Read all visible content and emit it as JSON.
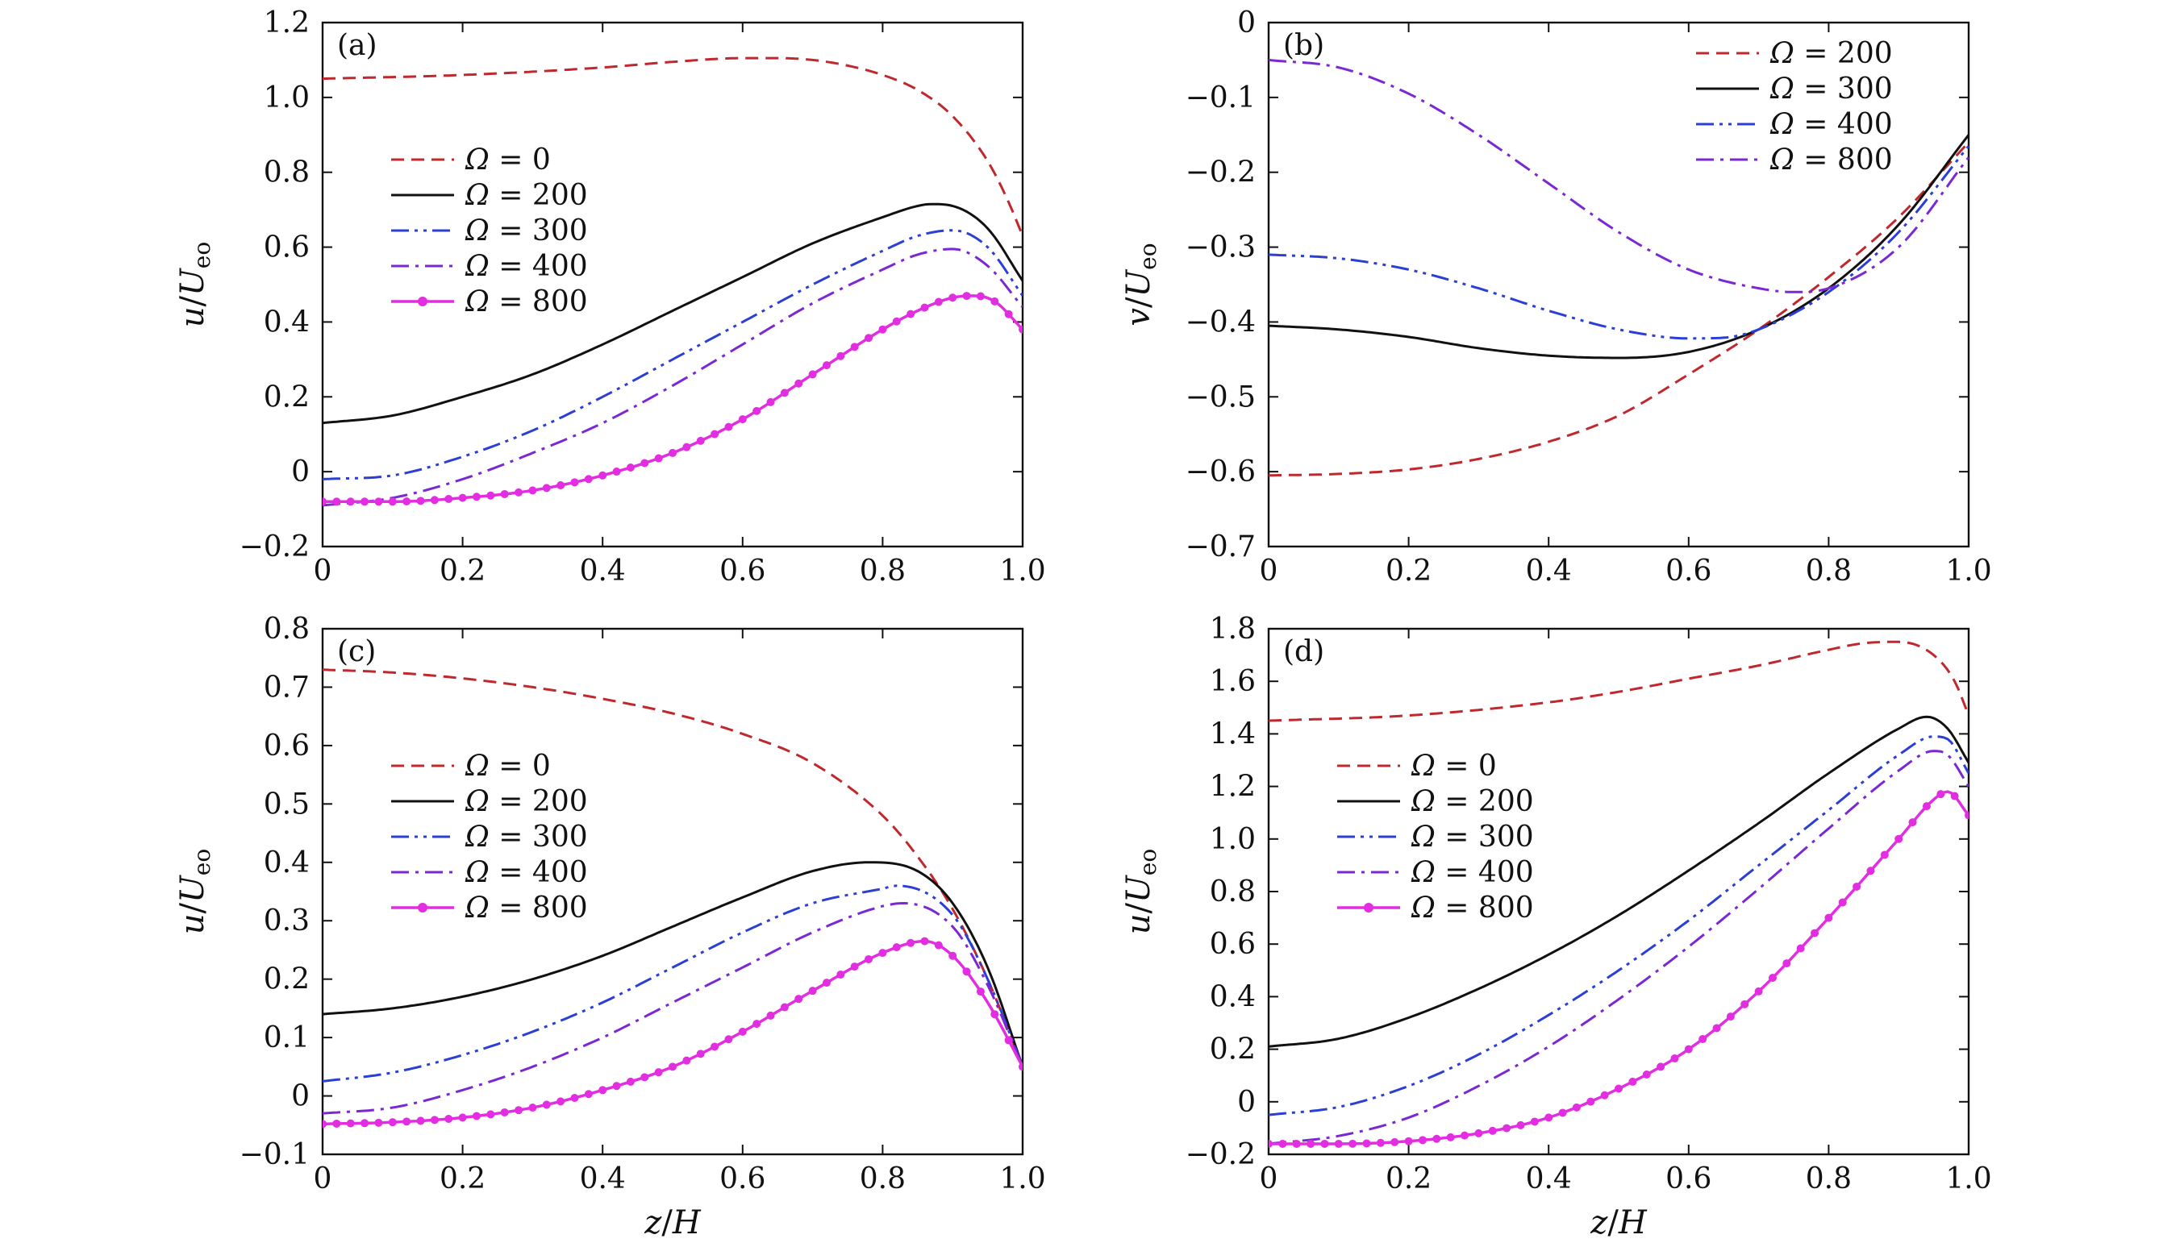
{
  "figure": {
    "shared_xlabel": {
      "var": "z",
      "sep": "/",
      "denom": "H"
    }
  },
  "chart_data": [
    {
      "type": "line",
      "panel": "(a)",
      "ylabel": {
        "var": "u",
        "sep": "/",
        "denom": "U",
        "sub": "eo"
      },
      "xlim": [
        0,
        1.0
      ],
      "ylim": [
        -0.2,
        1.2
      ],
      "xticks": [
        0,
        0.2,
        0.4,
        0.6,
        0.8,
        1.0
      ],
      "xtick_labels": [
        "0",
        "0.2",
        "0.4",
        "0.6",
        "0.8",
        "1.0"
      ],
      "yticks": [
        -0.2,
        0,
        0.2,
        0.4,
        0.6,
        0.8,
        1.0,
        1.2
      ],
      "ytick_labels": [
        "−0.2",
        "0",
        "0.2",
        "0.4",
        "0.6",
        "0.8",
        "1.0",
        "1.2"
      ],
      "legend_position": "center-left",
      "series": [
        {
          "name": "Ω = 0",
          "sym": "Ω",
          "eq": " = ",
          "val": "0",
          "color": "#c0282d",
          "style": "dashed",
          "markers": false,
          "x": [
            0,
            0.2,
            0.4,
            0.5,
            0.6,
            0.65,
            0.7,
            0.75,
            0.8,
            0.85,
            0.9,
            0.95,
            0.98,
            1.0
          ],
          "y": [
            1.05,
            1.06,
            1.08,
            1.095,
            1.105,
            1.105,
            1.1,
            1.085,
            1.06,
            1.02,
            0.95,
            0.83,
            0.72,
            0.63
          ]
        },
        {
          "name": "Ω = 200",
          "sym": "Ω",
          "eq": " = ",
          "val": "200",
          "color": "#111111",
          "style": "solid",
          "markers": false,
          "x": [
            0,
            0.1,
            0.2,
            0.3,
            0.4,
            0.5,
            0.6,
            0.7,
            0.8,
            0.85,
            0.87,
            0.9,
            0.95,
            1.0
          ],
          "y": [
            0.13,
            0.15,
            0.2,
            0.26,
            0.34,
            0.43,
            0.52,
            0.61,
            0.68,
            0.71,
            0.715,
            0.71,
            0.65,
            0.51
          ]
        },
        {
          "name": "Ω = 300",
          "sym": "Ω",
          "eq": " = ",
          "val": "300",
          "color": "#2b3fd6",
          "style": "dashdotdot",
          "markers": false,
          "x": [
            0,
            0.1,
            0.2,
            0.3,
            0.4,
            0.5,
            0.6,
            0.7,
            0.8,
            0.85,
            0.9,
            0.95,
            1.0
          ],
          "y": [
            -0.02,
            -0.01,
            0.04,
            0.11,
            0.2,
            0.3,
            0.4,
            0.5,
            0.59,
            0.63,
            0.645,
            0.6,
            0.47
          ]
        },
        {
          "name": "Ω = 400",
          "sym": "Ω",
          "eq": " = ",
          "val": "400",
          "color": "#7a28d4",
          "style": "dashdot",
          "markers": false,
          "x": [
            0,
            0.1,
            0.2,
            0.3,
            0.4,
            0.5,
            0.6,
            0.7,
            0.8,
            0.85,
            0.9,
            0.95,
            1.0
          ],
          "y": [
            -0.09,
            -0.07,
            -0.02,
            0.05,
            0.13,
            0.23,
            0.34,
            0.45,
            0.54,
            0.58,
            0.595,
            0.55,
            0.44
          ]
        },
        {
          "name": "Ω = 800",
          "sym": "Ω",
          "eq": " = ",
          "val": "800",
          "color": "#e22de0",
          "style": "solid",
          "markers": true,
          "x": [
            0,
            0.1,
            0.2,
            0.3,
            0.4,
            0.5,
            0.6,
            0.7,
            0.8,
            0.85,
            0.9,
            0.93,
            0.96,
            1.0
          ],
          "y": [
            -0.08,
            -0.08,
            -0.07,
            -0.05,
            -0.01,
            0.05,
            0.14,
            0.26,
            0.38,
            0.43,
            0.465,
            0.47,
            0.455,
            0.38
          ]
        }
      ]
    },
    {
      "type": "line",
      "panel": "(b)",
      "ylabel": {
        "var": "v",
        "sep": "/",
        "denom": "U",
        "sub": "eo"
      },
      "xlim": [
        0,
        1.0
      ],
      "ylim": [
        -0.7,
        0
      ],
      "xticks": [
        0,
        0.2,
        0.4,
        0.6,
        0.8,
        1.0
      ],
      "xtick_labels": [
        "0",
        "0.2",
        "0.4",
        "0.6",
        "0.8",
        "1.0"
      ],
      "yticks": [
        -0.7,
        -0.6,
        -0.5,
        -0.4,
        -0.3,
        -0.2,
        -0.1,
        0
      ],
      "ytick_labels": [
        "−0.7",
        "−0.6",
        "−0.5",
        "−0.4",
        "−0.3",
        "−0.2",
        "−0.1",
        "0"
      ],
      "legend_position": "top-right",
      "series": [
        {
          "name": "Ω = 200",
          "sym": "Ω",
          "eq": " = ",
          "val": "200",
          "color": "#c0282d",
          "style": "dashed",
          "markers": false,
          "x": [
            0,
            0.1,
            0.2,
            0.3,
            0.4,
            0.5,
            0.6,
            0.7,
            0.8,
            0.9,
            1.0
          ],
          "y": [
            -0.605,
            -0.603,
            -0.597,
            -0.583,
            -0.56,
            -0.525,
            -0.47,
            -0.41,
            -0.34,
            -0.26,
            -0.16
          ]
        },
        {
          "name": "Ω = 300",
          "sym": "Ω",
          "eq": " = ",
          "val": "300",
          "color": "#111111",
          "style": "solid",
          "markers": false,
          "x": [
            0,
            0.1,
            0.2,
            0.3,
            0.4,
            0.5,
            0.6,
            0.7,
            0.8,
            0.9,
            1.0
          ],
          "y": [
            -0.405,
            -0.41,
            -0.42,
            -0.435,
            -0.445,
            -0.448,
            -0.44,
            -0.41,
            -0.355,
            -0.27,
            -0.15
          ]
        },
        {
          "name": "Ω = 400",
          "sym": "Ω",
          "eq": " = ",
          "val": "400",
          "color": "#2b3fd6",
          "style": "dashdotdot",
          "markers": false,
          "x": [
            0,
            0.1,
            0.2,
            0.3,
            0.4,
            0.5,
            0.6,
            0.65,
            0.7,
            0.8,
            0.9,
            1.0
          ],
          "y": [
            -0.31,
            -0.315,
            -0.33,
            -0.355,
            -0.385,
            -0.41,
            -0.422,
            -0.421,
            -0.41,
            -0.36,
            -0.28,
            -0.165
          ]
        },
        {
          "name": "Ω = 800",
          "sym": "Ω",
          "eq": " = ",
          "val": "800",
          "color": "#7a28d4",
          "style": "dashdot",
          "markers": false,
          "x": [
            0,
            0.1,
            0.2,
            0.3,
            0.4,
            0.5,
            0.6,
            0.7,
            0.75,
            0.8,
            0.9,
            1.0
          ],
          "y": [
            -0.05,
            -0.06,
            -0.095,
            -0.15,
            -0.215,
            -0.28,
            -0.33,
            -0.355,
            -0.36,
            -0.355,
            -0.3,
            -0.18
          ]
        }
      ]
    },
    {
      "type": "line",
      "panel": "(c)",
      "ylabel": {
        "var": "u",
        "sep": "/",
        "denom": "U",
        "sub": "eo"
      },
      "xlim": [
        0,
        1.0
      ],
      "ylim": [
        -0.1,
        0.8
      ],
      "xticks": [
        0,
        0.2,
        0.4,
        0.6,
        0.8,
        1.0
      ],
      "xtick_labels": [
        "0",
        "0.2",
        "0.4",
        "0.6",
        "0.8",
        "1.0"
      ],
      "yticks": [
        -0.1,
        0,
        0.1,
        0.2,
        0.3,
        0.4,
        0.5,
        0.6,
        0.7,
        0.8
      ],
      "ytick_labels": [
        "−0.1",
        "0",
        "0.1",
        "0.2",
        "0.3",
        "0.4",
        "0.5",
        "0.6",
        "0.7",
        "0.8"
      ],
      "legend_position": "center-left",
      "series": [
        {
          "name": "Ω = 0",
          "sym": "Ω",
          "eq": " = ",
          "val": "0",
          "color": "#c0282d",
          "style": "dashed",
          "markers": false,
          "x": [
            0,
            0.1,
            0.2,
            0.3,
            0.4,
            0.5,
            0.6,
            0.7,
            0.8,
            0.85,
            0.9,
            0.95,
            1.0
          ],
          "y": [
            0.73,
            0.725,
            0.715,
            0.7,
            0.68,
            0.655,
            0.62,
            0.57,
            0.48,
            0.41,
            0.32,
            0.2,
            0.05
          ]
        },
        {
          "name": "Ω = 200",
          "sym": "Ω",
          "eq": " = ",
          "val": "200",
          "color": "#111111",
          "style": "solid",
          "markers": false,
          "x": [
            0,
            0.1,
            0.2,
            0.3,
            0.4,
            0.5,
            0.6,
            0.7,
            0.78,
            0.85,
            0.9,
            0.95,
            1.0
          ],
          "y": [
            0.14,
            0.15,
            0.17,
            0.2,
            0.24,
            0.29,
            0.34,
            0.385,
            0.4,
            0.385,
            0.33,
            0.22,
            0.05
          ]
        },
        {
          "name": "Ω = 300",
          "sym": "Ω",
          "eq": " = ",
          "val": "300",
          "color": "#2b3fd6",
          "style": "dashdotdot",
          "markers": false,
          "x": [
            0,
            0.1,
            0.2,
            0.3,
            0.4,
            0.5,
            0.6,
            0.7,
            0.8,
            0.82,
            0.9,
            0.95,
            1.0
          ],
          "y": [
            0.025,
            0.04,
            0.07,
            0.11,
            0.16,
            0.22,
            0.28,
            0.33,
            0.355,
            0.36,
            0.31,
            0.2,
            0.05
          ]
        },
        {
          "name": "Ω = 400",
          "sym": "Ω",
          "eq": " = ",
          "val": "400",
          "color": "#7a28d4",
          "style": "dashdot",
          "markers": false,
          "x": [
            0,
            0.1,
            0.2,
            0.3,
            0.4,
            0.5,
            0.6,
            0.7,
            0.8,
            0.83,
            0.9,
            0.95,
            1.0
          ],
          "y": [
            -0.03,
            -0.02,
            0.01,
            0.05,
            0.1,
            0.16,
            0.22,
            0.28,
            0.325,
            0.33,
            0.29,
            0.19,
            0.05
          ]
        },
        {
          "name": "Ω = 800",
          "sym": "Ω",
          "eq": " = ",
          "val": "800",
          "color": "#e22de0",
          "style": "solid",
          "markers": true,
          "x": [
            0,
            0.1,
            0.2,
            0.3,
            0.4,
            0.5,
            0.6,
            0.7,
            0.8,
            0.86,
            0.9,
            0.95,
            1.0
          ],
          "y": [
            -0.048,
            -0.045,
            -0.037,
            -0.02,
            0.01,
            0.05,
            0.11,
            0.18,
            0.245,
            0.265,
            0.24,
            0.16,
            0.05
          ]
        }
      ]
    },
    {
      "type": "line",
      "panel": "(d)",
      "ylabel": {
        "var": "u",
        "sep": "/",
        "denom": "U",
        "sub": "eo"
      },
      "xlim": [
        0,
        1.0
      ],
      "ylim": [
        -0.2,
        1.8
      ],
      "xticks": [
        0,
        0.2,
        0.4,
        0.6,
        0.8,
        1.0
      ],
      "xtick_labels": [
        "0",
        "0.2",
        "0.4",
        "0.6",
        "0.8",
        "1.0"
      ],
      "yticks": [
        -0.2,
        0,
        0.2,
        0.4,
        0.6,
        0.8,
        1.0,
        1.2,
        1.4,
        1.6,
        1.8
      ],
      "ytick_labels": [
        "−0.2",
        "0",
        "0.2",
        "0.4",
        "0.6",
        "0.8",
        "1.0",
        "1.2",
        "1.4",
        "1.6",
        "1.8"
      ],
      "legend_position": "center-left",
      "series": [
        {
          "name": "Ω = 0",
          "sym": "Ω",
          "eq": " = ",
          "val": "0",
          "color": "#c0282d",
          "style": "dashed",
          "markers": false,
          "x": [
            0,
            0.2,
            0.4,
            0.5,
            0.6,
            0.7,
            0.8,
            0.85,
            0.9,
            0.95,
            0.98,
            1.0
          ],
          "y": [
            1.45,
            1.47,
            1.52,
            1.56,
            1.61,
            1.66,
            1.72,
            1.745,
            1.75,
            1.7,
            1.6,
            1.47
          ]
        },
        {
          "name": "Ω = 200",
          "sym": "Ω",
          "eq": " = ",
          "val": "200",
          "color": "#111111",
          "style": "solid",
          "markers": false,
          "x": [
            0,
            0.1,
            0.2,
            0.3,
            0.4,
            0.5,
            0.6,
            0.7,
            0.8,
            0.9,
            0.94,
            0.97,
            1.0
          ],
          "y": [
            0.21,
            0.24,
            0.32,
            0.43,
            0.56,
            0.71,
            0.88,
            1.06,
            1.25,
            1.42,
            1.465,
            1.42,
            1.29
          ]
        },
        {
          "name": "Ω = 300",
          "sym": "Ω",
          "eq": " = ",
          "val": "300",
          "color": "#2b3fd6",
          "style": "dashdotdot",
          "markers": false,
          "x": [
            0,
            0.1,
            0.2,
            0.3,
            0.4,
            0.5,
            0.6,
            0.7,
            0.8,
            0.9,
            0.95,
            0.97,
            1.0
          ],
          "y": [
            -0.05,
            -0.02,
            0.06,
            0.18,
            0.33,
            0.5,
            0.69,
            0.9,
            1.11,
            1.32,
            1.39,
            1.38,
            1.25
          ]
        },
        {
          "name": "Ω = 400",
          "sym": "Ω",
          "eq": " = ",
          "val": "400",
          "color": "#7a28d4",
          "style": "dashdot",
          "markers": false,
          "x": [
            0,
            0.1,
            0.2,
            0.3,
            0.4,
            0.5,
            0.6,
            0.7,
            0.8,
            0.9,
            0.95,
            0.97,
            1.0
          ],
          "y": [
            -0.16,
            -0.13,
            -0.06,
            0.06,
            0.21,
            0.39,
            0.59,
            0.81,
            1.04,
            1.26,
            1.335,
            1.32,
            1.2
          ]
        },
        {
          "name": "Ω = 800",
          "sym": "Ω",
          "eq": " = ",
          "val": "800",
          "color": "#e22de0",
          "style": "solid",
          "markers": true,
          "x": [
            0,
            0.1,
            0.2,
            0.3,
            0.4,
            0.5,
            0.6,
            0.7,
            0.8,
            0.9,
            0.95,
            0.97,
            1.0
          ],
          "y": [
            -0.16,
            -0.16,
            -0.15,
            -0.12,
            -0.06,
            0.05,
            0.2,
            0.42,
            0.7,
            1.0,
            1.15,
            1.18,
            1.09
          ]
        }
      ]
    }
  ]
}
